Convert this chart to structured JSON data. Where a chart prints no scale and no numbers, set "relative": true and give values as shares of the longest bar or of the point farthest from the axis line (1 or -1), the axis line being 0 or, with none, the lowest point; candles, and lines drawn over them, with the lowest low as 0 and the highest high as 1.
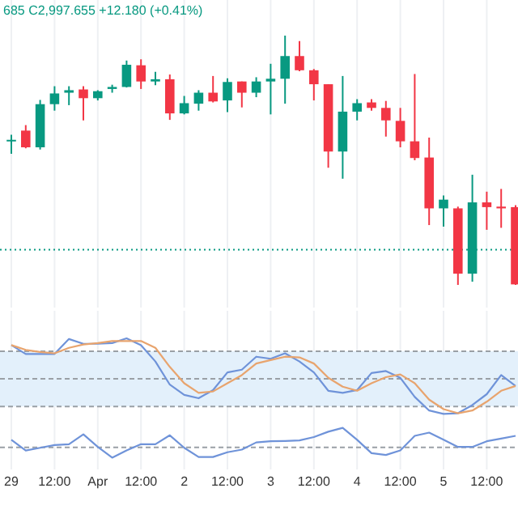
{
  "chart_data": [
    {
      "type": "candlestick",
      "relative": true,
      "annotations": [
        "685 C2,997.655 +12.180 (+0.41%)"
      ],
      "categories": [
        null,
        null,
        null,
        null,
        null,
        null,
        null,
        null,
        null,
        null,
        null,
        null,
        null,
        null,
        null,
        null,
        null,
        null,
        null,
        null,
        null,
        null,
        null,
        null,
        null,
        null,
        null,
        null,
        null,
        null,
        null,
        null,
        null,
        null,
        null,
        null
      ],
      "tick_labels": false,
      "grid": "x",
      "ohlc": [
        [
          0.576,
          0.602,
          0.526,
          0.582
        ],
        [
          0.619,
          0.641,
          0.548,
          0.552
        ],
        [
          0.552,
          0.742,
          0.543,
          0.725
        ],
        [
          0.725,
          0.797,
          0.699,
          0.768
        ],
        [
          0.771,
          0.797,
          0.721,
          0.781
        ],
        [
          0.784,
          0.797,
          0.66,
          0.749
        ],
        [
          0.749,
          0.781,
          0.74,
          0.777
        ],
        [
          0.786,
          0.803,
          0.771,
          0.794
        ],
        [
          0.794,
          0.9,
          0.792,
          0.883
        ],
        [
          0.881,
          0.905,
          0.786,
          0.816
        ],
        [
          0.816,
          0.855,
          0.801,
          0.825
        ],
        [
          0.825,
          0.844,
          0.662,
          0.688
        ],
        [
          0.688,
          0.758,
          0.684,
          0.729
        ],
        [
          0.727,
          0.781,
          0.699,
          0.771
        ],
        [
          0.771,
          0.838,
          0.732,
          0.736
        ],
        [
          0.74,
          0.829,
          0.693,
          0.814
        ],
        [
          0.816,
          0.816,
          0.712,
          0.771
        ],
        [
          0.771,
          0.833,
          0.753,
          0.816
        ],
        [
          0.816,
          0.887,
          0.684,
          0.827
        ],
        [
          0.827,
          1,
          0.727,
          0.918
        ],
        [
          0.918,
          0.978,
          0.857,
          0.861
        ],
        [
          0.861,
          0.866,
          0.74,
          0.805
        ],
        [
          0.805,
          0.805,
          0.47,
          0.535
        ],
        [
          0.535,
          0.838,
          0.426,
          0.695
        ],
        [
          0.695,
          0.745,
          0.66,
          0.729
        ],
        [
          0.732,
          0.745,
          0.699,
          0.71
        ],
        [
          0.71,
          0.738,
          0.595,
          0.66
        ],
        [
          0.658,
          0.71,
          0.552,
          0.576
        ],
        [
          0.576,
          0.846,
          0.5,
          0.509
        ],
        [
          0.511,
          0.591,
          0.24,
          0.307
        ],
        [
          0.307,
          0.359,
          0.234,
          0.342
        ],
        [
          0.307,
          0.314,
          0,
          0.045
        ],
        [
          0.045,
          0.442,
          0.013,
          0.331
        ],
        [
          0.331,
          0.374,
          0.221,
          0.312
        ],
        [
          0.314,
          0.385,
          0.229,
          0.307
        ],
        [
          0.312,
          0.32,
          0,
          0.002
        ]
      ],
      "colors": [
        "#089981",
        "#f23645",
        "#089981",
        "#089981",
        "#089981",
        "#f23645",
        "#089981",
        "#089981",
        "#089981",
        "#f23645",
        "#089981",
        "#f23645",
        "#089981",
        "#089981",
        "#f23645",
        "#089981",
        "#f23645",
        "#089981",
        "#089981",
        "#089981",
        "#f23645",
        "#f23645",
        "#f23645",
        "#089981",
        "#089981",
        "#f23645",
        "#f23645",
        "#f23645",
        "#f23645",
        "#f23645",
        "#089981",
        "#f23645",
        "#089981",
        "#f23645",
        "#f23645",
        "#f23645"
      ],
      "ref_lines": [
        {
          "axis": "y",
          "value": 0.141,
          "color": "#089981",
          "line_style": "dotted"
        }
      ]
    },
    {
      "type": "line",
      "relative": true,
      "categories": [
        null,
        null,
        null,
        null,
        null,
        null,
        null,
        null,
        null,
        null,
        null,
        null,
        null,
        null,
        null,
        null,
        null,
        null,
        null,
        null,
        null,
        null,
        null,
        null,
        null,
        null,
        null,
        null,
        null,
        null,
        null,
        null,
        null,
        null,
        null,
        null
      ],
      "tick_labels": false,
      "grid": "x",
      "series": [
        {
          "color": "#6f93d9",
          "values": [
            0.9,
            0.77,
            0.77,
            0.77,
            0.99,
            0.92,
            0.92,
            0.93,
            1,
            0.9,
            0.66,
            0.32,
            0.17,
            0.12,
            0.24,
            0.5,
            0.54,
            0.73,
            0.7,
            0.78,
            0.66,
            0.5,
            0.23,
            0.2,
            0.24,
            0.49,
            0.52,
            0.42,
            0.14,
            -0.06,
            -0.11,
            -0.1,
            0.02,
            0.18,
            0.46,
            0.3
          ]
        },
        {
          "color": "#e8a46e",
          "values": [
            0.9,
            0.83,
            0.8,
            0.78,
            0.86,
            0.91,
            0.93,
            0.96,
            0.96,
            0.96,
            0.86,
            0.58,
            0.34,
            0.2,
            0.22,
            0.34,
            0.46,
            0.63,
            0.68,
            0.73,
            0.72,
            0.63,
            0.42,
            0.29,
            0.23,
            0.34,
            0.43,
            0.47,
            0.34,
            0.1,
            -0.04,
            -0.1,
            -0.06,
            0.07,
            0.23,
            0.3
          ]
        }
      ],
      "bands": [
        {
          "axis": "y",
          "from": 0,
          "to": 0.81,
          "color": "#e3f0fb"
        }
      ],
      "ref_lines": [
        {
          "axis": "y",
          "value": 0,
          "color": "#9aa0a6",
          "line_style": "dashed"
        },
        {
          "axis": "y",
          "value": 0.405,
          "color": "#9aa0a6",
          "line_style": "dashed"
        },
        {
          "axis": "y",
          "value": 0.81,
          "color": "#9aa0a6",
          "line_style": "dashed"
        }
      ]
    },
    {
      "type": "line",
      "relative": true,
      "categories": [
        "29",
        null,
        null,
        "12:00",
        null,
        null,
        "Apr",
        null,
        null,
        "12:00",
        null,
        null,
        "2",
        null,
        null,
        "12:00",
        null,
        null,
        "3",
        null,
        null,
        "12:00",
        null,
        null,
        "4",
        null,
        null,
        "12:00",
        null,
        null,
        "5",
        null,
        null,
        "12:00",
        null,
        null
      ],
      "tick_labels": "x",
      "grid": "x",
      "series": [
        {
          "color": "#6f93d9",
          "values": [
            0.6,
            0.24,
            0.33,
            0.42,
            0.45,
            0.78,
            0.36,
            0,
            0.24,
            0.45,
            0.45,
            0.75,
            0.33,
            0.02,
            0.02,
            0.18,
            0.27,
            0.51,
            0.55,
            0.56,
            0.58,
            0.69,
            0.87,
            1,
            0.6,
            0.15,
            0.09,
            0.24,
            0.73,
            0.84,
            0.6,
            0.36,
            0.36,
            0.55,
            0.64,
            0.73
          ]
        }
      ],
      "ref_lines": [
        {
          "axis": "y",
          "value": 0.345,
          "color": "#9aa0a6",
          "line_style": "dashed"
        }
      ]
    }
  ]
}
